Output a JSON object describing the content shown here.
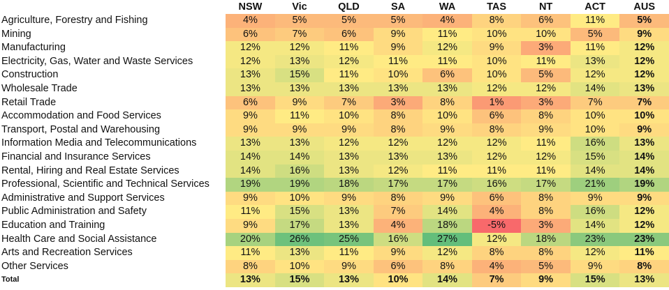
{
  "chart_data": {
    "type": "heatmap",
    "columns": [
      "NSW",
      "Vic",
      "QLD",
      "SA",
      "WA",
      "TAS",
      "NT",
      "ACT",
      "AUS"
    ],
    "rows": [
      {
        "label": "Agriculture, Forestry and Fishing",
        "values": [
          4,
          5,
          5,
          5,
          4,
          8,
          6,
          11,
          5
        ]
      },
      {
        "label": "Mining",
        "values": [
          6,
          7,
          6,
          9,
          11,
          10,
          10,
          5,
          9
        ]
      },
      {
        "label": "Manufacturing",
        "values": [
          12,
          12,
          11,
          9,
          12,
          9,
          3,
          11,
          12
        ]
      },
      {
        "label": "Electricity, Gas, Water and Waste Services",
        "values": [
          12,
          13,
          12,
          11,
          11,
          10,
          11,
          13,
          12
        ]
      },
      {
        "label": "Construction",
        "values": [
          13,
          15,
          11,
          10,
          6,
          10,
          5,
          12,
          12
        ]
      },
      {
        "label": "Wholesale Trade",
        "values": [
          13,
          13,
          13,
          13,
          13,
          12,
          12,
          14,
          13
        ]
      },
      {
        "label": "Retail Trade",
        "values": [
          6,
          9,
          7,
          3,
          8,
          1,
          3,
          7,
          7
        ]
      },
      {
        "label": "Accommodation and Food Services",
        "values": [
          9,
          11,
          10,
          8,
          10,
          6,
          8,
          10,
          10
        ]
      },
      {
        "label": "Transport, Postal and Warehousing",
        "values": [
          9,
          9,
          9,
          8,
          9,
          8,
          9,
          10,
          9
        ]
      },
      {
        "label": "Information Media and Telecommunications",
        "values": [
          13,
          13,
          12,
          12,
          12,
          12,
          11,
          16,
          13
        ]
      },
      {
        "label": "Financial and Insurance Services",
        "values": [
          14,
          14,
          13,
          13,
          13,
          12,
          12,
          15,
          14
        ]
      },
      {
        "label": "Rental, Hiring and Real Estate Services",
        "values": [
          14,
          16,
          13,
          12,
          11,
          11,
          11,
          14,
          14
        ]
      },
      {
        "label": "Professional, Scientific and Technical Services",
        "values": [
          19,
          19,
          18,
          17,
          17,
          16,
          17,
          21,
          19
        ]
      },
      {
        "label": "Administrative and Support Services",
        "values": [
          9,
          10,
          9,
          8,
          9,
          6,
          8,
          9,
          9
        ]
      },
      {
        "label": "Public Administration and Safety",
        "values": [
          11,
          15,
          13,
          7,
          14,
          4,
          8,
          16,
          12
        ]
      },
      {
        "label": "Education and Training",
        "values": [
          9,
          17,
          13,
          4,
          18,
          -5,
          3,
          14,
          12
        ]
      },
      {
        "label": "Health Care and Social Assistance",
        "values": [
          20,
          26,
          25,
          16,
          27,
          12,
          18,
          23,
          23
        ]
      },
      {
        "label": "Arts and Recreation Services",
        "values": [
          11,
          13,
          11,
          9,
          12,
          8,
          8,
          12,
          11
        ]
      },
      {
        "label": "Other Services",
        "values": [
          8,
          10,
          9,
          6,
          8,
          4,
          5,
          9,
          8
        ]
      }
    ],
    "total": {
      "label": "Total",
      "values": [
        13,
        15,
        13,
        10,
        14,
        7,
        9,
        15,
        13
      ]
    },
    "value_suffix": "%",
    "color_scale": {
      "low": "#f8696b",
      "mid": "#ffeb84",
      "high": "#63be7b"
    }
  }
}
